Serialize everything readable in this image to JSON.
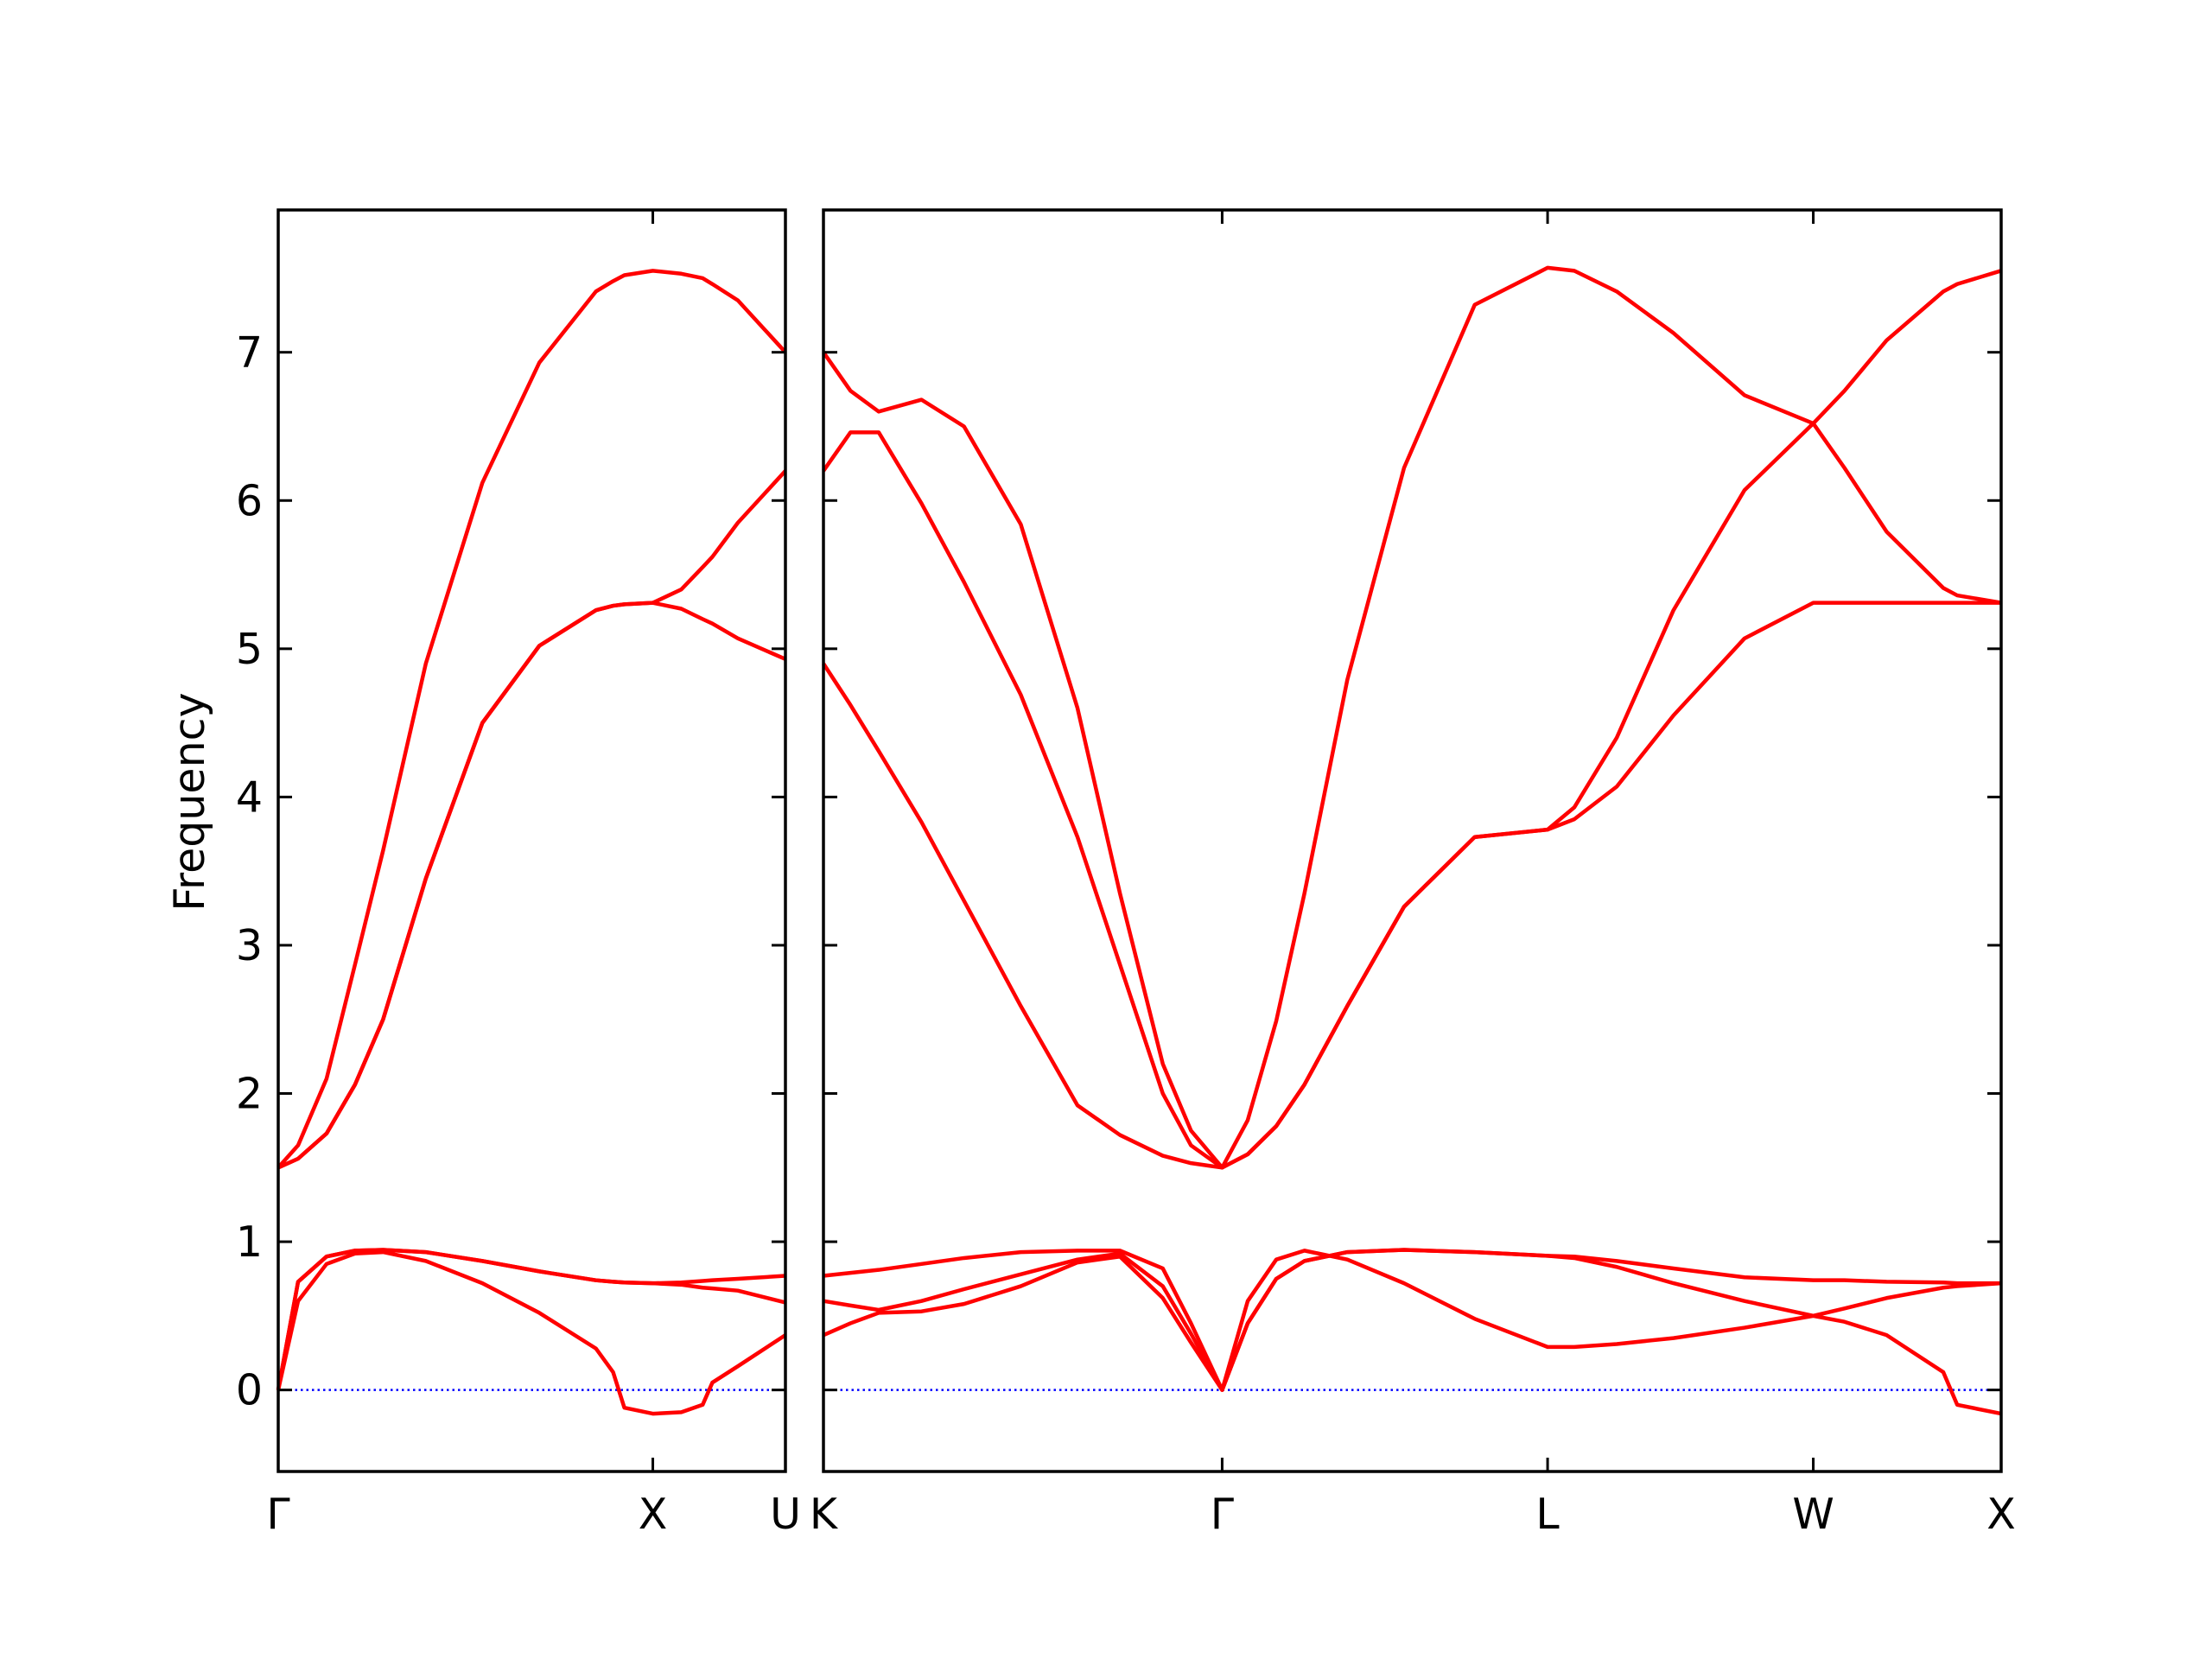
{
  "chart_data": [
    {
      "type": "line",
      "ylabel": "Frequency",
      "x": [
        0,
        0.053,
        0.129,
        0.205,
        0.28,
        0.394,
        0.545,
        0.697,
        0.848,
        0.894,
        0.924,
        1.0,
        1.076,
        1.133,
        1.159,
        1.227,
        1.354
      ],
      "xlim": [
        0,
        1.354
      ],
      "xticks": [
        {
          "value": 0,
          "label": "Γ"
        },
        {
          "value": 1.0,
          "label": "X"
        },
        {
          "value": 1.354,
          "label": "U"
        }
      ],
      "ylim": [
        -0.55,
        7.96
      ],
      "yticks": [
        0,
        1,
        2,
        3,
        4,
        5,
        6,
        7
      ],
      "ytick_labels": true,
      "hline": {
        "value": 0,
        "color": "#0000ff",
        "style": "dotted"
      },
      "series": [
        {
          "color": "#ff0000",
          "values": [
            0,
            0.6,
            0.85,
            0.92,
            0.93,
            0.87,
            0.72,
            0.52,
            0.28,
            0.12,
            -0.12,
            -0.16,
            -0.15,
            -0.1,
            0.05,
            0.16,
            0.37
          ]
        },
        {
          "color": "#ff0000",
          "values": [
            0,
            0.73,
            0.9,
            0.94,
            0.945,
            0.93,
            0.87,
            0.8,
            0.74,
            0.73,
            0.725,
            0.72,
            0.71,
            0.69,
            0.685,
            0.67,
            0.59
          ]
        },
        {
          "color": "#ff0000",
          "values": [
            0,
            0.73,
            0.9,
            0.94,
            0.945,
            0.93,
            0.87,
            0.8,
            0.74,
            0.73,
            0.725,
            0.72,
            0.725,
            0.735,
            0.74,
            0.75,
            0.77
          ]
        },
        {
          "color": "#ff0000",
          "values": [
            1.5,
            1.56,
            1.73,
            2.06,
            2.5,
            3.45,
            4.5,
            5.02,
            5.26,
            5.29,
            5.3,
            5.31,
            5.4,
            5.55,
            5.62,
            5.85,
            6.2
          ]
        },
        {
          "color": "#ff0000",
          "values": [
            1.5,
            1.56,
            1.73,
            2.06,
            2.5,
            3.45,
            4.5,
            5.02,
            5.26,
            5.29,
            5.3,
            5.31,
            5.27,
            5.2,
            5.17,
            5.07,
            4.93
          ]
        },
        {
          "color": "#ff0000",
          "values": [
            1.5,
            1.65,
            2.1,
            2.87,
            3.64,
            4.9,
            6.12,
            6.93,
            7.41,
            7.48,
            7.52,
            7.55,
            7.53,
            7.5,
            7.46,
            7.35,
            7.0
          ]
        }
      ]
    },
    {
      "type": "line",
      "x": [
        0,
        0.072,
        0.147,
        0.261,
        0.374,
        0.525,
        0.676,
        0.789,
        0.903,
        0.978,
        1.061,
        1.129,
        1.205,
        1.28,
        1.394,
        1.545,
        1.733,
        1.927,
        1.998,
        2.111,
        2.262,
        2.451,
        2.634,
        2.717,
        2.829,
        2.98,
        3.017,
        3.134
      ],
      "xlim": [
        0,
        3.134
      ],
      "xticks": [
        {
          "value": 0,
          "label": "K"
        },
        {
          "value": 1.061,
          "label": "Γ"
        },
        {
          "value": 1.927,
          "label": "L"
        },
        {
          "value": 2.634,
          "label": "W"
        },
        {
          "value": 3.134,
          "label": "X"
        }
      ],
      "ylim": [
        -0.55,
        7.96
      ],
      "yticks": [
        0,
        1,
        2,
        3,
        4,
        5,
        6,
        7
      ],
      "ytick_labels": false,
      "hline": {
        "value": 0,
        "color": "#0000ff",
        "style": "dotted"
      },
      "series": [
        {
          "color": "#ff0000",
          "values": [
            0.37,
            0.45,
            0.52,
            0.53,
            0.58,
            0.7,
            0.86,
            0.9,
            0.62,
            0.32,
            0,
            0.6,
            0.88,
            0.94,
            0.88,
            0.72,
            0.48,
            0.29,
            0.29,
            0.31,
            0.35,
            0.42,
            0.5,
            0.46,
            0.37,
            0.12,
            -0.1,
            -0.16
          ]
        },
        {
          "color": "#ff0000",
          "values": [
            0.6,
            0.57,
            0.54,
            0.6,
            0.68,
            0.78,
            0.88,
            0.92,
            0.7,
            0.38,
            0,
            0.45,
            0.75,
            0.87,
            0.93,
            0.945,
            0.93,
            0.905,
            0.89,
            0.83,
            0.72,
            0.6,
            0.5,
            0.55,
            0.62,
            0.69,
            0.7,
            0.72
          ]
        },
        {
          "color": "#ff0000",
          "values": [
            0.77,
            0.79,
            0.81,
            0.85,
            0.89,
            0.93,
            0.94,
            0.94,
            0.82,
            0.45,
            0,
            0.45,
            0.75,
            0.87,
            0.93,
            0.945,
            0.93,
            0.905,
            0.9,
            0.87,
            0.82,
            0.76,
            0.74,
            0.74,
            0.73,
            0.725,
            0.72,
            0.72
          ]
        },
        {
          "color": "#ff0000",
          "values": [
            4.9,
            4.62,
            4.31,
            3.83,
            3.3,
            2.59,
            1.92,
            1.72,
            1.58,
            1.53,
            1.5,
            1.59,
            1.78,
            2.06,
            2.59,
            3.26,
            3.73,
            3.78,
            3.85,
            4.07,
            4.55,
            5.07,
            5.31,
            5.31,
            5.31,
            5.31,
            5.31,
            5.31
          ]
        },
        {
          "color": "#ff0000",
          "values": [
            6.2,
            6.46,
            6.46,
            5.98,
            5.45,
            4.69,
            3.73,
            2.87,
            2.0,
            1.65,
            1.5,
            1.59,
            1.78,
            2.06,
            2.59,
            3.26,
            3.73,
            3.78,
            3.93,
            4.4,
            5.26,
            6.07,
            6.52,
            6.22,
            5.79,
            5.41,
            5.36,
            5.31
          ]
        },
        {
          "color": "#ff0000",
          "values": [
            7.0,
            6.74,
            6.6,
            6.68,
            6.5,
            5.84,
            4.6,
            3.35,
            2.2,
            1.75,
            1.5,
            1.82,
            2.49,
            3.35,
            4.79,
            6.22,
            7.32,
            7.57,
            7.55,
            7.41,
            7.13,
            6.71,
            6.52,
            6.74,
            7.08,
            7.41,
            7.46,
            7.55
          ]
        }
      ]
    }
  ]
}
